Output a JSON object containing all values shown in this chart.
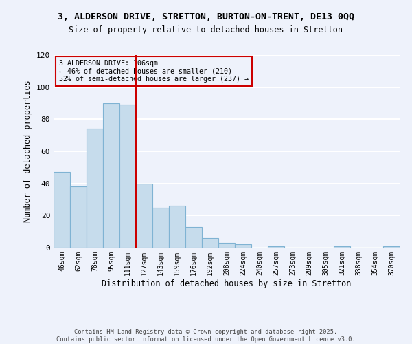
{
  "title": "3, ALDERSON DRIVE, STRETTON, BURTON-ON-TRENT, DE13 0QQ",
  "subtitle": "Size of property relative to detached houses in Stretton",
  "xlabel": "Distribution of detached houses by size in Stretton",
  "ylabel": "Number of detached properties",
  "bar_labels": [
    "46sqm",
    "62sqm",
    "78sqm",
    "95sqm",
    "111sqm",
    "127sqm",
    "143sqm",
    "159sqm",
    "176sqm",
    "192sqm",
    "208sqm",
    "224sqm",
    "240sqm",
    "257sqm",
    "273sqm",
    "289sqm",
    "305sqm",
    "321sqm",
    "338sqm",
    "354sqm",
    "370sqm"
  ],
  "bar_values": [
    47,
    38,
    74,
    90,
    89,
    40,
    25,
    26,
    13,
    6,
    3,
    2,
    0,
    1,
    0,
    0,
    0,
    1,
    0,
    0,
    1
  ],
  "bar_color": "#c6dcec",
  "bar_edge_color": "#7fb3d3",
  "vline_x": 4.5,
  "vline_color": "#cc0000",
  "annotation_line1": "3 ALDERSON DRIVE: 106sqm",
  "annotation_line2": "← 46% of detached houses are smaller (210)",
  "annotation_line3": "52% of semi-detached houses are larger (237) →",
  "annotation_box_color": "#cc0000",
  "ylim": [
    0,
    120
  ],
  "yticks": [
    0,
    20,
    40,
    60,
    80,
    100,
    120
  ],
  "bg_color": "#eef2fb",
  "grid_color": "#ffffff",
  "footer1": "Contains HM Land Registry data © Crown copyright and database right 2025.",
  "footer2": "Contains public sector information licensed under the Open Government Licence v3.0."
}
